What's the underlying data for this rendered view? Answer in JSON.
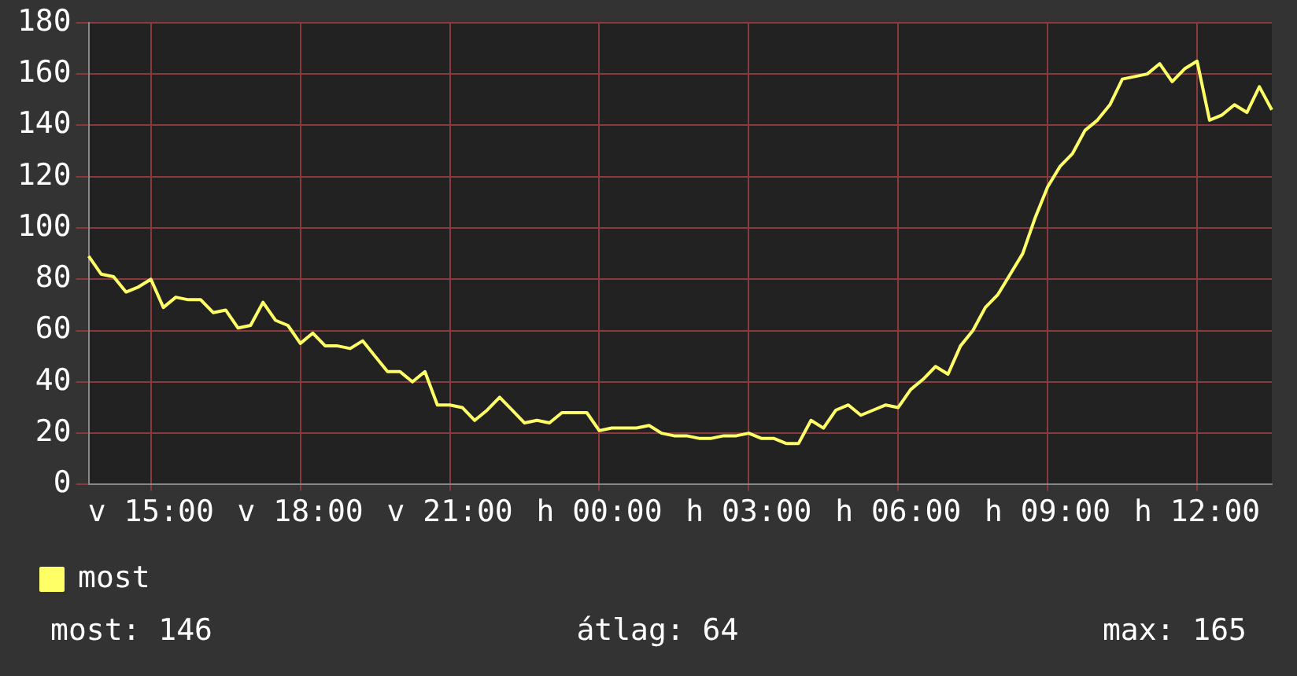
{
  "chart_data": {
    "type": "line",
    "categories": [
      null,
      null,
      null,
      null,
      null,
      "v 15:00",
      null,
      null,
      null,
      null,
      null,
      null,
      null,
      null,
      null,
      null,
      null,
      "v 18:00",
      null,
      null,
      null,
      null,
      null,
      null,
      null,
      null,
      null,
      null,
      null,
      "v 21:00",
      null,
      null,
      null,
      null,
      null,
      null,
      null,
      null,
      null,
      null,
      null,
      "h 00:00",
      null,
      null,
      null,
      null,
      null,
      null,
      null,
      null,
      null,
      null,
      null,
      "h 03:00",
      null,
      null,
      null,
      null,
      null,
      null,
      null,
      null,
      null,
      null,
      null,
      "h 06:00",
      null,
      null,
      null,
      null,
      null,
      null,
      null,
      null,
      null,
      null,
      null,
      "h 09:00",
      null,
      null,
      null,
      null,
      null,
      null,
      null,
      null,
      null,
      null,
      null,
      "h 12:00",
      null,
      null,
      null,
      null,
      null,
      null
    ],
    "series": [
      {
        "name": "most",
        "color": "#ffff66",
        "values": [
          89,
          82,
          81,
          75,
          77,
          80,
          69,
          73,
          72,
          72,
          67,
          68,
          61,
          62,
          71,
          64,
          62,
          55,
          59,
          54,
          54,
          53,
          56,
          50,
          44,
          44,
          40,
          44,
          31,
          31,
          30,
          25,
          29,
          34,
          29,
          24,
          25,
          24,
          28,
          28,
          28,
          21,
          22,
          22,
          22,
          23,
          20,
          19,
          19,
          18,
          18,
          19,
          19,
          20,
          18,
          18,
          16,
          16,
          25,
          22,
          29,
          31,
          27,
          29,
          31,
          30,
          37,
          41,
          46,
          43,
          54,
          60,
          69,
          74,
          82,
          90,
          104,
          116,
          124,
          129,
          138,
          142,
          148,
          158,
          159,
          160,
          164,
          157,
          162,
          165,
          142,
          144,
          148,
          145,
          155,
          146
        ]
      }
    ],
    "ylim": [
      0,
      180
    ],
    "yticks": [
      0,
      20,
      40,
      60,
      80,
      100,
      120,
      140,
      160,
      180
    ],
    "grid": true,
    "legend": "bottom left",
    "marker": "none",
    "line_style": "solid",
    "annotations": [
      "most: 146",
      "átlag: 64",
      "max: 165"
    ]
  }
}
